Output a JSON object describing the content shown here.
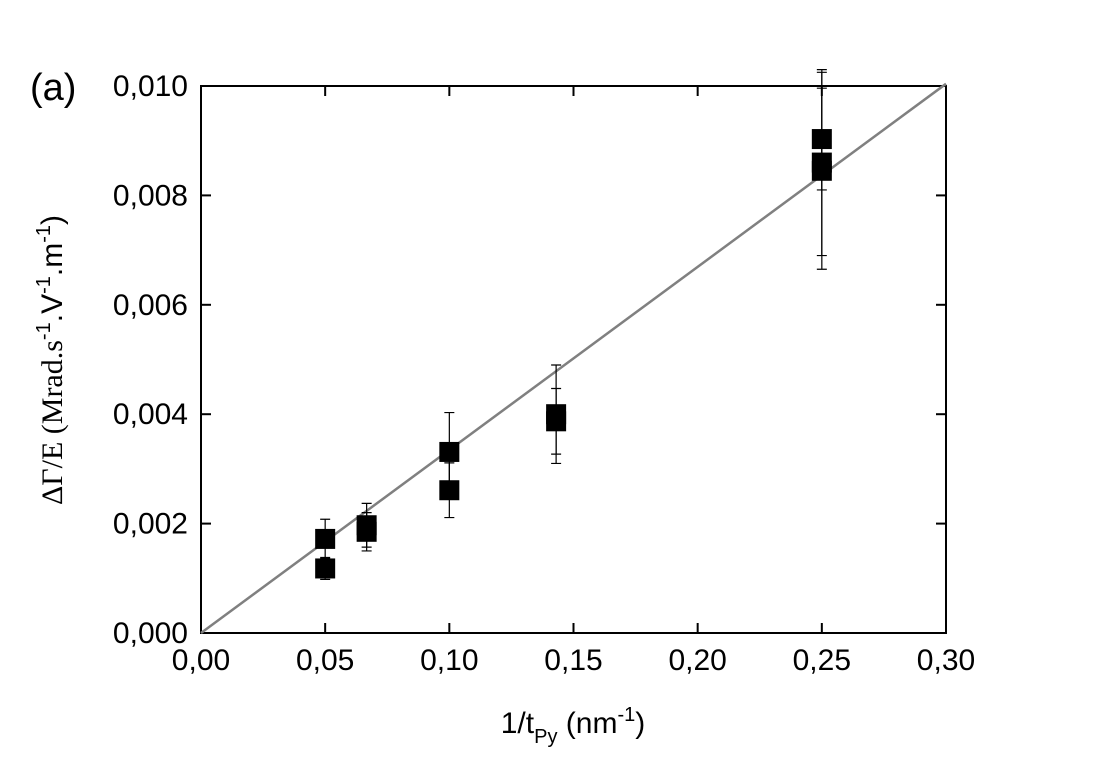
{
  "chart_data": {
    "type": "scatter",
    "panel_label": "(a)",
    "xlabel_parts": [
      "1/t",
      "Py",
      " (nm",
      "-1",
      ")"
    ],
    "ylabel_parts": [
      "ΔΓ/E (Mrad.s",
      "-1",
      ".V",
      "-1",
      ".m",
      "-1",
      ")"
    ],
    "points": {
      "color": "#000000",
      "x": [
        0.05,
        0.05,
        0.0667,
        0.0667,
        0.1,
        0.1,
        0.143,
        0.143,
        0.25,
        0.25,
        0.25
      ],
      "y": [
        0.00172,
        0.00118,
        0.00197,
        0.00185,
        0.00331,
        0.00261,
        0.004,
        0.00387,
        0.00903,
        0.0086,
        0.00845
      ],
      "yerr": [
        0.00036,
        0.0002,
        0.0004,
        0.00035,
        0.00072,
        0.0005,
        0.0009,
        0.0006,
        0.00093,
        0.0017,
        0.0018
      ]
    },
    "fit": {
      "color": "#808080",
      "x": [
        0,
        0.3
      ],
      "y": [
        0,
        0.01004
      ]
    },
    "xlim": [
      0,
      0.3
    ],
    "ylim": [
      0,
      0.01
    ],
    "xticks": [
      {
        "value": 0,
        "label": "0,00"
      },
      {
        "value": 0.05,
        "label": "0,05"
      },
      {
        "value": 0.1,
        "label": "0,10"
      },
      {
        "value": 0.15,
        "label": "0,15"
      },
      {
        "value": 0.2,
        "label": "0,20"
      },
      {
        "value": 0.25,
        "label": "0,25"
      },
      {
        "value": 0.3,
        "label": "0,30"
      }
    ],
    "yticks": [
      {
        "value": 0,
        "label": "0,000"
      },
      {
        "value": 0.002,
        "label": "0,002"
      },
      {
        "value": 0.004,
        "label": "0,004"
      },
      {
        "value": 0.006,
        "label": "0,006"
      },
      {
        "value": 0.008,
        "label": "0,008"
      },
      {
        "value": 0.01,
        "label": "0,010"
      }
    ]
  }
}
